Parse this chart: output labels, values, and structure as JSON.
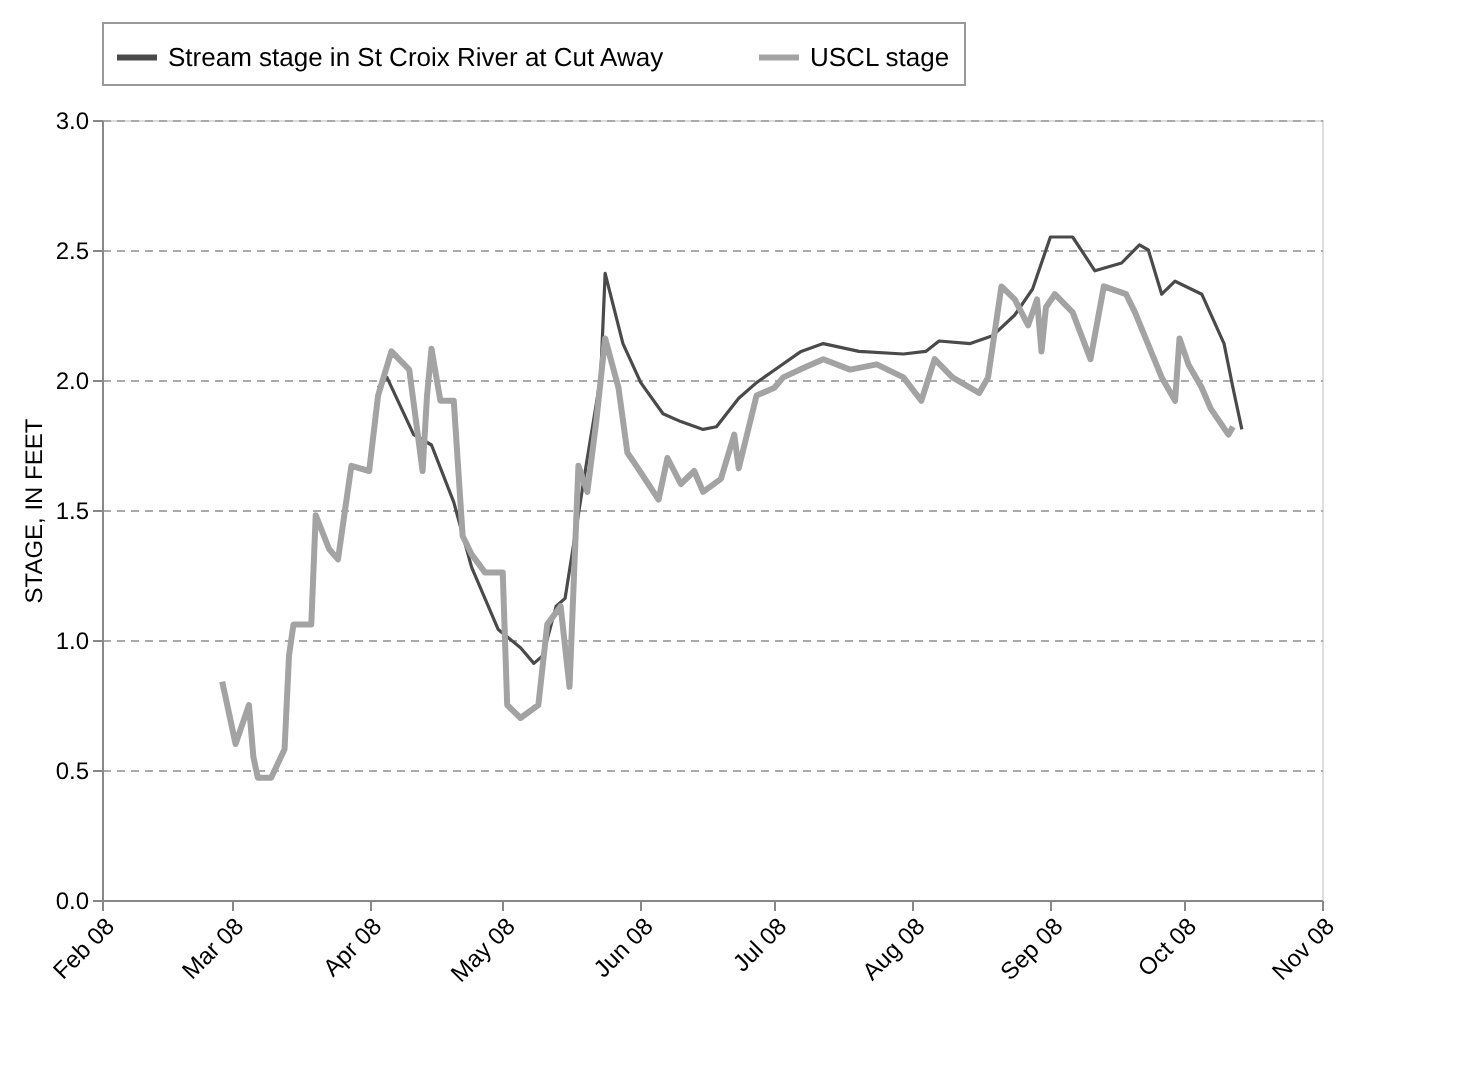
{
  "chart_data": {
    "type": "line",
    "ylabel": "STAGE, IN FEET",
    "xlim": [
      "2008-02-01",
      "2008-11-01"
    ],
    "xticks": [
      {
        "value": "2008-02-01",
        "label": "Feb 08"
      },
      {
        "value": "2008-03-01",
        "label": "Mar 08"
      },
      {
        "value": "2008-04-01",
        "label": "Apr 08"
      },
      {
        "value": "2008-05-01",
        "label": "May 08"
      },
      {
        "value": "2008-06-01",
        "label": "Jun 08"
      },
      {
        "value": "2008-07-01",
        "label": "Jul 08"
      },
      {
        "value": "2008-08-01",
        "label": "Aug 08"
      },
      {
        "value": "2008-09-01",
        "label": "Sep 08"
      },
      {
        "value": "2008-10-01",
        "label": "Oct 08"
      },
      {
        "value": "2008-11-01",
        "label": "Nov 08"
      }
    ],
    "ylim": [
      0,
      3
    ],
    "yticks": [
      {
        "value": 0,
        "label": "0.0"
      },
      0.5,
      {
        "value": 1,
        "label": "1.0"
      },
      1.5,
      {
        "value": 2,
        "label": "2.0"
      },
      2.5,
      {
        "value": 3,
        "label": "3.0"
      }
    ],
    "grid": "y",
    "legend": "top",
    "line_style": "solid",
    "marker": "none",
    "series": [
      {
        "name": "Stream stage in St Croix River at Cut Away",
        "color": "#4a4a4a",
        "x": [
          "2008-04-03",
          "2008-04-05",
          "2008-04-11",
          "2008-04-15",
          "2008-04-20",
          "2008-04-24",
          "2008-04-30",
          "2008-05-05",
          "2008-05-08",
          "2008-05-10",
          "2008-05-13",
          "2008-05-15",
          "2008-05-20",
          "2008-05-23",
          "2008-05-24",
          "2008-05-28",
          "2008-06-01",
          "2008-06-06",
          "2008-06-10",
          "2008-06-15",
          "2008-06-18",
          "2008-06-23",
          "2008-06-27",
          "2008-07-02",
          "2008-07-07",
          "2008-07-12",
          "2008-07-20",
          "2008-07-30",
          "2008-08-04",
          "2008-08-07",
          "2008-08-14",
          "2008-08-19",
          "2008-08-24",
          "2008-08-28",
          "2008-09-01",
          "2008-09-06",
          "2008-09-11",
          "2008-09-17",
          "2008-09-21",
          "2008-09-23",
          "2008-09-26",
          "2008-09-29",
          "2008-10-05",
          "2008-10-10",
          "2008-10-12",
          "2008-10-14"
        ],
        "values": [
          1.97,
          2.01,
          1.79,
          1.75,
          1.53,
          1.28,
          1.04,
          0.97,
          0.91,
          0.94,
          1.13,
          1.16,
          1.7,
          2.01,
          2.41,
          2.14,
          1.99,
          1.87,
          1.84,
          1.81,
          1.82,
          1.93,
          1.99,
          2.05,
          2.11,
          2.14,
          2.11,
          2.1,
          2.11,
          2.15,
          2.14,
          2.17,
          2.25,
          2.35,
          2.55,
          2.55,
          2.42,
          2.45,
          2.52,
          2.5,
          2.33,
          2.38,
          2.33,
          2.14,
          1.97,
          1.81
        ]
      },
      {
        "name": "USCL stage",
        "color": "#a3a3a3",
        "x": [
          "2008-02-28",
          "2008-03-02",
          "2008-03-05",
          "2008-03-06",
          "2008-03-07",
          "2008-03-10",
          "2008-03-13",
          "2008-03-14",
          "2008-03-15",
          "2008-03-19",
          "2008-03-20",
          "2008-03-23",
          "2008-03-25",
          "2008-03-27",
          "2008-03-28",
          "2008-04-01",
          "2008-04-03",
          "2008-04-06",
          "2008-04-10",
          "2008-04-13",
          "2008-04-14",
          "2008-04-15",
          "2008-04-17",
          "2008-04-20",
          "2008-04-22",
          "2008-04-24",
          "2008-04-27",
          "2008-05-01",
          "2008-05-02",
          "2008-05-05",
          "2008-05-09",
          "2008-05-11",
          "2008-05-14",
          "2008-05-16",
          "2008-05-18",
          "2008-05-20",
          "2008-05-22",
          "2008-05-24",
          "2008-05-27",
          "2008-05-29",
          "2008-05-31",
          "2008-06-05",
          "2008-06-07",
          "2008-06-10",
          "2008-06-13",
          "2008-06-15",
          "2008-06-19",
          "2008-06-22",
          "2008-06-23",
          "2008-06-27",
          "2008-07-01",
          "2008-07-03",
          "2008-07-08",
          "2008-07-12",
          "2008-07-18",
          "2008-07-24",
          "2008-07-30",
          "2008-08-03",
          "2008-08-06",
          "2008-08-10",
          "2008-08-16",
          "2008-08-18",
          "2008-08-21",
          "2008-08-24",
          "2008-08-27",
          "2008-08-29",
          "2008-08-30",
          "2008-08-31",
          "2008-09-02",
          "2008-09-06",
          "2008-09-10",
          "2008-09-13",
          "2008-09-18",
          "2008-09-20",
          "2008-09-26",
          "2008-09-29",
          "2008-09-30",
          "2008-10-02",
          "2008-10-05",
          "2008-10-07",
          "2008-10-11",
          "2008-10-12"
        ],
        "values": [
          0.84,
          0.6,
          0.75,
          0.55,
          0.47,
          0.47,
          0.58,
          0.94,
          1.06,
          1.06,
          1.48,
          1.35,
          1.31,
          1.55,
          1.67,
          1.65,
          1.94,
          2.11,
          2.04,
          1.65,
          1.94,
          2.12,
          1.92,
          1.92,
          1.4,
          1.33,
          1.26,
          1.26,
          0.75,
          0.7,
          0.75,
          1.06,
          1.13,
          0.82,
          1.67,
          1.57,
          1.84,
          2.16,
          1.97,
          1.72,
          1.67,
          1.54,
          1.7,
          1.6,
          1.65,
          1.57,
          1.62,
          1.79,
          1.66,
          1.94,
          1.97,
          2.01,
          2.05,
          2.08,
          2.04,
          2.06,
          2.01,
          1.92,
          2.08,
          2.01,
          1.95,
          2.01,
          2.36,
          2.31,
          2.21,
          2.31,
          2.11,
          2.28,
          2.33,
          2.26,
          2.08,
          2.36,
          2.33,
          2.26,
          2.01,
          1.92,
          2.16,
          2.06,
          1.97,
          1.89,
          1.79,
          1.82
        ]
      }
    ]
  }
}
